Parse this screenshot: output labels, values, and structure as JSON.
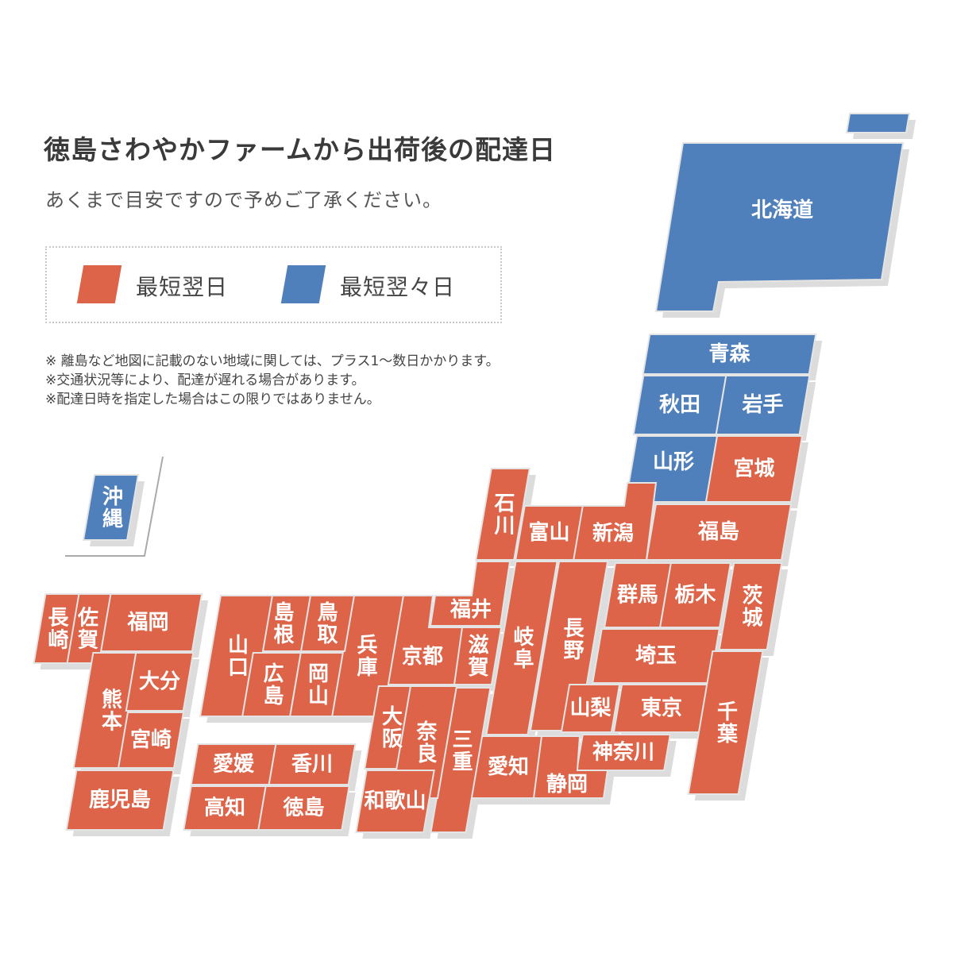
{
  "title": "徳島さわやかファームから出荷後の配達日",
  "subtitle": "あくまで目安ですので予めご了承ください。",
  "legend": [
    {
      "label": "最短翌日",
      "tier": "next",
      "color": "#dd6448"
    },
    {
      "label": "最短翌々日",
      "tier": "next2",
      "color": "#5080bb"
    }
  ],
  "notes": [
    "※ 離島など地図に記載のない地域に関しては、プラス1〜数日かかります。",
    "※交通状況等により、配達が遅れる場合があります。",
    "※配達日時を指定した場合はこの限りではありません。"
  ],
  "colors": {
    "next": "#dd6448",
    "next2": "#5080bb",
    "shadow": "#dcdcdc"
  },
  "prefectures": [
    {
      "name": "北海道",
      "tier": "next2"
    },
    {
      "name": "青森",
      "tier": "next2"
    },
    {
      "name": "秋田",
      "tier": "next2"
    },
    {
      "name": "岩手",
      "tier": "next2"
    },
    {
      "name": "山形",
      "tier": "next2"
    },
    {
      "name": "宮城",
      "tier": "next"
    },
    {
      "name": "福島",
      "tier": "next"
    },
    {
      "name": "新潟",
      "tier": "next"
    },
    {
      "name": "富山",
      "tier": "next"
    },
    {
      "name": "石川",
      "tier": "next"
    },
    {
      "name": "福井",
      "tier": "next"
    },
    {
      "name": "岐阜",
      "tier": "next"
    },
    {
      "name": "長野",
      "tier": "next"
    },
    {
      "name": "群馬",
      "tier": "next"
    },
    {
      "name": "栃木",
      "tier": "next"
    },
    {
      "name": "茨城",
      "tier": "next"
    },
    {
      "name": "埼玉",
      "tier": "next"
    },
    {
      "name": "山梨",
      "tier": "next"
    },
    {
      "name": "東京",
      "tier": "next"
    },
    {
      "name": "神奈川",
      "tier": "next"
    },
    {
      "name": "千葉",
      "tier": "next"
    },
    {
      "name": "愛知",
      "tier": "next"
    },
    {
      "name": "静岡",
      "tier": "next"
    },
    {
      "name": "三重",
      "tier": "next"
    },
    {
      "name": "滋賀",
      "tier": "next"
    },
    {
      "name": "京都",
      "tier": "next"
    },
    {
      "name": "兵庫",
      "tier": "next"
    },
    {
      "name": "大阪",
      "tier": "next"
    },
    {
      "name": "奈良",
      "tier": "next"
    },
    {
      "name": "和歌山",
      "tier": "next"
    },
    {
      "name": "鳥取",
      "tier": "next"
    },
    {
      "name": "島根",
      "tier": "next"
    },
    {
      "name": "山口",
      "tier": "next"
    },
    {
      "name": "広島",
      "tier": "next"
    },
    {
      "name": "岡山",
      "tier": "next"
    },
    {
      "name": "愛媛",
      "tier": "next"
    },
    {
      "name": "香川",
      "tier": "next"
    },
    {
      "name": "高知",
      "tier": "next"
    },
    {
      "name": "徳島",
      "tier": "next"
    },
    {
      "name": "福岡",
      "tier": "next"
    },
    {
      "name": "佐賀",
      "tier": "next"
    },
    {
      "name": "長崎",
      "tier": "next"
    },
    {
      "name": "熊本",
      "tier": "next"
    },
    {
      "name": "大分",
      "tier": "next"
    },
    {
      "name": "宮崎",
      "tier": "next"
    },
    {
      "name": "鹿児島",
      "tier": "next"
    },
    {
      "name": "沖縄",
      "tier": "next2"
    }
  ]
}
